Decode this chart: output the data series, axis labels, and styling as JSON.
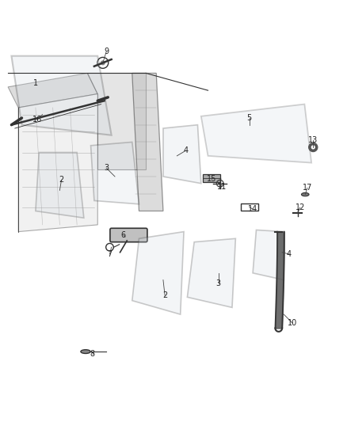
{
  "background_color": "#ffffff",
  "line_color": "#333333",
  "label_color": "#222222",
  "fig_width": 4.38,
  "fig_height": 5.33,
  "dpi": 100,
  "label_positions": {
    "1": [
      0.1,
      0.87,
      null,
      null
    ],
    "2a": [
      0.175,
      0.59,
      0.17,
      0.56
    ],
    "2b": [
      0.475,
      0.255,
      0.47,
      0.3
    ],
    "3a": [
      0.305,
      0.625,
      0.33,
      0.6
    ],
    "3b": [
      0.63,
      0.29,
      0.63,
      0.32
    ],
    "4a": [
      0.535,
      0.675,
      0.51,
      0.66
    ],
    "4b": [
      0.835,
      0.375,
      0.815,
      0.38
    ],
    "5": [
      0.72,
      0.77,
      0.72,
      0.75
    ],
    "6": [
      0.355,
      0.43,
      0.36,
      0.425
    ],
    "7": [
      0.315,
      0.375,
      0.32,
      0.395
    ],
    "8a": [
      0.265,
      0.085,
      0.265,
      0.09
    ],
    "9": [
      0.305,
      0.962,
      0.295,
      0.93
    ],
    "10": [
      0.845,
      0.175,
      0.82,
      0.2
    ],
    "11": [
      0.64,
      0.57,
      0.635,
      0.58
    ],
    "12": [
      0.867,
      0.51,
      0.86,
      0.495
    ],
    "13": [
      0.905,
      0.705,
      0.905,
      0.685
    ],
    "14": [
      0.73,
      0.505,
      0.72,
      0.512
    ],
    "15": [
      0.61,
      0.592,
      0.61,
      0.595
    ],
    "16": [
      0.105,
      0.765,
      0.12,
      0.78
    ],
    "17": [
      0.888,
      0.567,
      0.882,
      0.548
    ]
  },
  "label_text_map": {
    "1": "1",
    "2a": "2",
    "2b": "2",
    "3a": "3",
    "3b": "3",
    "4a": "4",
    "4b": "4",
    "5": "5",
    "6": "6",
    "7": "7",
    "8a": "8",
    "9": "9",
    "10": "10",
    "11": "11",
    "12": "12",
    "13": "13",
    "14": "14",
    "15": "15",
    "16": "16",
    "17": "17"
  }
}
